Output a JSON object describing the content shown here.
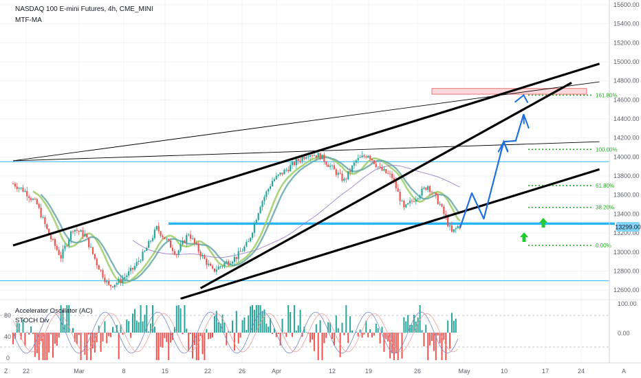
{
  "header": {
    "symbol": "NASDAQ 100 E-mini Futures, 4h, CME_MINI",
    "indicator": "MTF-MA"
  },
  "lower_pane": {
    "indicator_1": "Accelerator Oscillator (AC)",
    "indicator_2": "STOCH Div",
    "left_ticks": [
      "80",
      "40",
      "0"
    ],
    "right_ticks": [
      "100.00",
      "0.00"
    ]
  },
  "current_price": "13299.00",
  "fib_labels": [
    "161.80%",
    "100.00%",
    "61.80%",
    "38.20%",
    "0.00%"
  ],
  "colors": {
    "up_candle": "#26a69a",
    "down_candle": "#ef5350",
    "trendline": "#000000",
    "support_line": "#29b6f6",
    "fib": "#22ab22",
    "projection": "#1e6fe0",
    "target_box": "#f8c9cf",
    "arrow": "#22c932"
  },
  "chart_data": {
    "type": "candlestick",
    "title": "NASDAQ 100 E-mini Futures, 4h, CME_MINI",
    "y_axis": {
      "ticks": [
        15600,
        15400,
        15200,
        15000,
        14800,
        14600,
        14400,
        14200,
        14000,
        13800,
        13600,
        13400,
        13200,
        13000,
        12800,
        12600
      ],
      "range": [
        12500,
        15650
      ]
    },
    "x_axis": {
      "labels": [
        "22",
        "Mar",
        "8",
        "15",
        "22",
        "26",
        "Apr",
        "12",
        "19",
        "26",
        "May",
        "10",
        "17",
        "24"
      ],
      "extra_labels": [
        "Z",
        "A"
      ]
    },
    "price_path": [
      [
        0,
        13720
      ],
      [
        3,
        13640
      ],
      [
        6,
        13500
      ],
      [
        9,
        13180
      ],
      [
        12,
        12950
      ],
      [
        15,
        13250
      ],
      [
        18,
        13180
      ],
      [
        21,
        12880
      ],
      [
        24,
        12640
      ],
      [
        27,
        12700
      ],
      [
        30,
        12820
      ],
      [
        33,
        13000
      ],
      [
        36,
        13250
      ],
      [
        38,
        13150
      ],
      [
        41,
        12980
      ],
      [
        44,
        13200
      ],
      [
        47,
        12980
      ],
      [
        50,
        12800
      ],
      [
        53,
        12880
      ],
      [
        56,
        12950
      ],
      [
        59,
        13100
      ],
      [
        62,
        13500
      ],
      [
        65,
        13750
      ],
      [
        68,
        13850
      ],
      [
        71,
        13950
      ],
      [
        74,
        14040
      ],
      [
        77,
        14010
      ],
      [
        80,
        13880
      ],
      [
        83,
        13750
      ],
      [
        86,
        13960
      ],
      [
        89,
        14030
      ],
      [
        92,
        13870
      ],
      [
        95,
        13790
      ],
      [
        98,
        13450
      ],
      [
        101,
        13580
      ],
      [
        104,
        13700
      ],
      [
        107,
        13500
      ],
      [
        110,
        13200
      ],
      [
        112,
        13290
      ]
    ],
    "levels": [
      {
        "name": "current",
        "value": 13299
      },
      {
        "name": "upper_hline",
        "value": 13950
      },
      {
        "name": "lower_hline",
        "value": 12700
      }
    ],
    "fib_levels": [
      {
        "label": "161.80%",
        "value": 14650
      },
      {
        "label": "100.00%",
        "value": 14080
      },
      {
        "label": "61.80%",
        "value": 13700
      },
      {
        "label": "38.20%",
        "value": 13470
      },
      {
        "label": "0.00%",
        "value": 13070
      }
    ],
    "trendlines": [
      {
        "from": {
          "t": 0,
          "p": 13070
        },
        "to": {
          "t": 147,
          "p": 14980
        },
        "style": "thick"
      },
      {
        "from": {
          "t": 47,
          "p": 12620
        },
        "to": {
          "t": 140,
          "p": 14780
        },
        "style": "thick"
      },
      {
        "from": {
          "t": 42,
          "p": 12510
        },
        "to": {
          "t": 147,
          "p": 13870
        },
        "style": "thick"
      },
      {
        "from": {
          "t": 0,
          "p": 13960
        },
        "to": {
          "t": 147,
          "p": 14790
        },
        "style": "thin"
      },
      {
        "from": {
          "t": 0,
          "p": 13960
        },
        "to": {
          "t": 147,
          "p": 14160
        },
        "style": "thin"
      }
    ],
    "target_zone": [
      14660,
      14720
    ],
    "projection_path": [
      [
        112,
        13250
      ],
      [
        115,
        13620
      ],
      [
        118,
        13350
      ],
      [
        123,
        14160
      ],
      [
        126,
        14170
      ],
      [
        128,
        14450
      ]
    ],
    "grid": true
  }
}
